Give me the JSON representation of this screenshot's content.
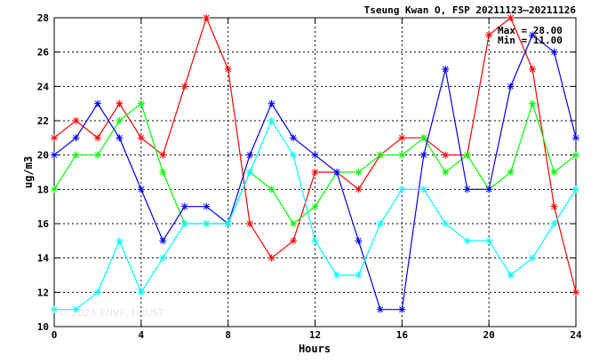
{
  "chart_data": {
    "type": "line",
    "title": "Tseung Kwan O, FSP 20211123–20211126",
    "xlabel": "Hours",
    "ylabel": "ug/m3",
    "xlim": [
      0,
      24
    ],
    "ylim": [
      10,
      28
    ],
    "xticks": [
      0,
      4,
      8,
      12,
      16,
      20,
      24
    ],
    "yticks": [
      10,
      12,
      14,
      16,
      18,
      20,
      22,
      24,
      26,
      28
    ],
    "grid": true,
    "annotations": {
      "max": "Max = 28.00",
      "min": "Min = 11.00"
    },
    "watermark": "© 2026 ENVF, HKUST",
    "x": [
      0,
      1,
      2,
      3,
      4,
      5,
      6,
      7,
      8,
      9,
      10,
      11,
      12,
      13,
      14,
      15,
      16,
      17,
      18,
      19,
      20,
      21,
      22,
      23,
      24
    ],
    "series": [
      {
        "color": "#ff0000",
        "values": [
          21,
          22,
          21,
          23,
          21,
          20,
          24,
          28,
          25,
          16,
          14,
          15,
          19,
          19,
          18,
          20,
          21,
          21,
          20,
          20,
          27,
          28,
          25,
          17,
          12
        ]
      },
      {
        "color": "#00ff00",
        "values": [
          18,
          20,
          20,
          22,
          23,
          19,
          16,
          16,
          16,
          19,
          18,
          16,
          17,
          19,
          19,
          20,
          20,
          21,
          19,
          20,
          18,
          19,
          23,
          19,
          20
        ]
      },
      {
        "color": "#0000ff",
        "values": [
          20,
          21,
          23,
          21,
          18,
          15,
          17,
          17,
          16,
          20,
          23,
          21,
          20,
          19,
          15,
          11,
          11,
          20,
          25,
          18,
          18,
          24,
          27,
          26,
          21
        ]
      },
      {
        "color": "#00ffff",
        "values": [
          11,
          11,
          12,
          15,
          12,
          14,
          16,
          16,
          16,
          19,
          22,
          20,
          15,
          13,
          13,
          16,
          18,
          18,
          16,
          15,
          15,
          13,
          14,
          16,
          18
        ]
      }
    ]
  }
}
